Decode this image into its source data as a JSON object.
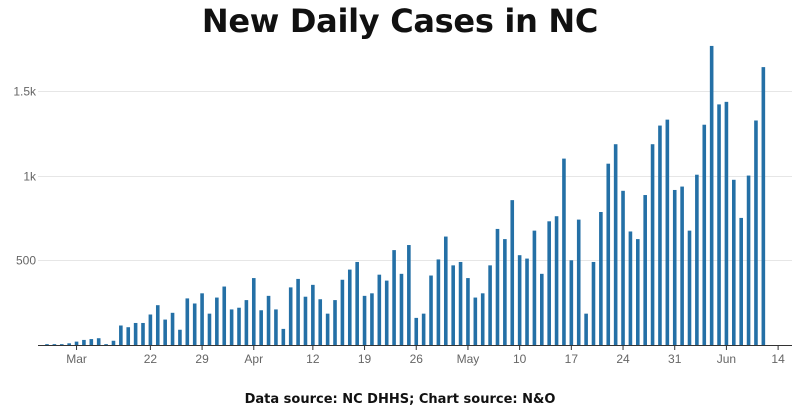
{
  "title": "New Daily Cases in NC",
  "footer": "Data source: NC DHHS; Chart source: N&O",
  "colors": {
    "bar": "#2470a6",
    "grid": "#e6e6e6",
    "axis": "#333333",
    "text": "#666666"
  },
  "chart_data": {
    "type": "bar",
    "title": "New Daily Cases in NC",
    "xlabel": "",
    "ylabel": "",
    "ylim": [
      0,
      1800
    ],
    "grid": true,
    "y_ticks": [
      {
        "value": 500,
        "label": "500"
      },
      {
        "value": 1000,
        "label": "1k"
      },
      {
        "value": 1500,
        "label": "1.5k"
      }
    ],
    "x_ticks": [
      {
        "index": 4,
        "label": "Mar"
      },
      {
        "index": 14,
        "label": "22"
      },
      {
        "index": 21,
        "label": "29"
      },
      {
        "index": 28,
        "label": "Apr"
      },
      {
        "index": 36,
        "label": "12"
      },
      {
        "index": 43,
        "label": "19"
      },
      {
        "index": 50,
        "label": "26"
      },
      {
        "index": 57,
        "label": "May"
      },
      {
        "index": 64,
        "label": "10"
      },
      {
        "index": 71,
        "label": "17"
      },
      {
        "index": 78,
        "label": "24"
      },
      {
        "index": 85,
        "label": "31"
      },
      {
        "index": 92,
        "label": "Jun"
      },
      {
        "index": 99,
        "label": "14"
      }
    ],
    "values": [
      5,
      5,
      5,
      10,
      20,
      30,
      35,
      40,
      5,
      25,
      115,
      105,
      130,
      130,
      180,
      235,
      150,
      190,
      90,
      275,
      245,
      305,
      185,
      280,
      345,
      210,
      220,
      265,
      395,
      205,
      290,
      210,
      95,
      340,
      390,
      285,
      355,
      270,
      185,
      265,
      385,
      445,
      490,
      290,
      305,
      415,
      380,
      560,
      420,
      590,
      160,
      185,
      410,
      505,
      640,
      470,
      490,
      395,
      280,
      305,
      470,
      685,
      625,
      855,
      530,
      510,
      675,
      420,
      730,
      760,
      1100,
      500,
      740,
      185,
      490,
      785,
      1070,
      1185,
      910,
      670,
      625,
      885,
      1185,
      1295,
      1330,
      915,
      935,
      675,
      1005,
      1300,
      1765,
      1420,
      1435,
      975,
      750,
      1000,
      1325,
      1640
    ]
  }
}
